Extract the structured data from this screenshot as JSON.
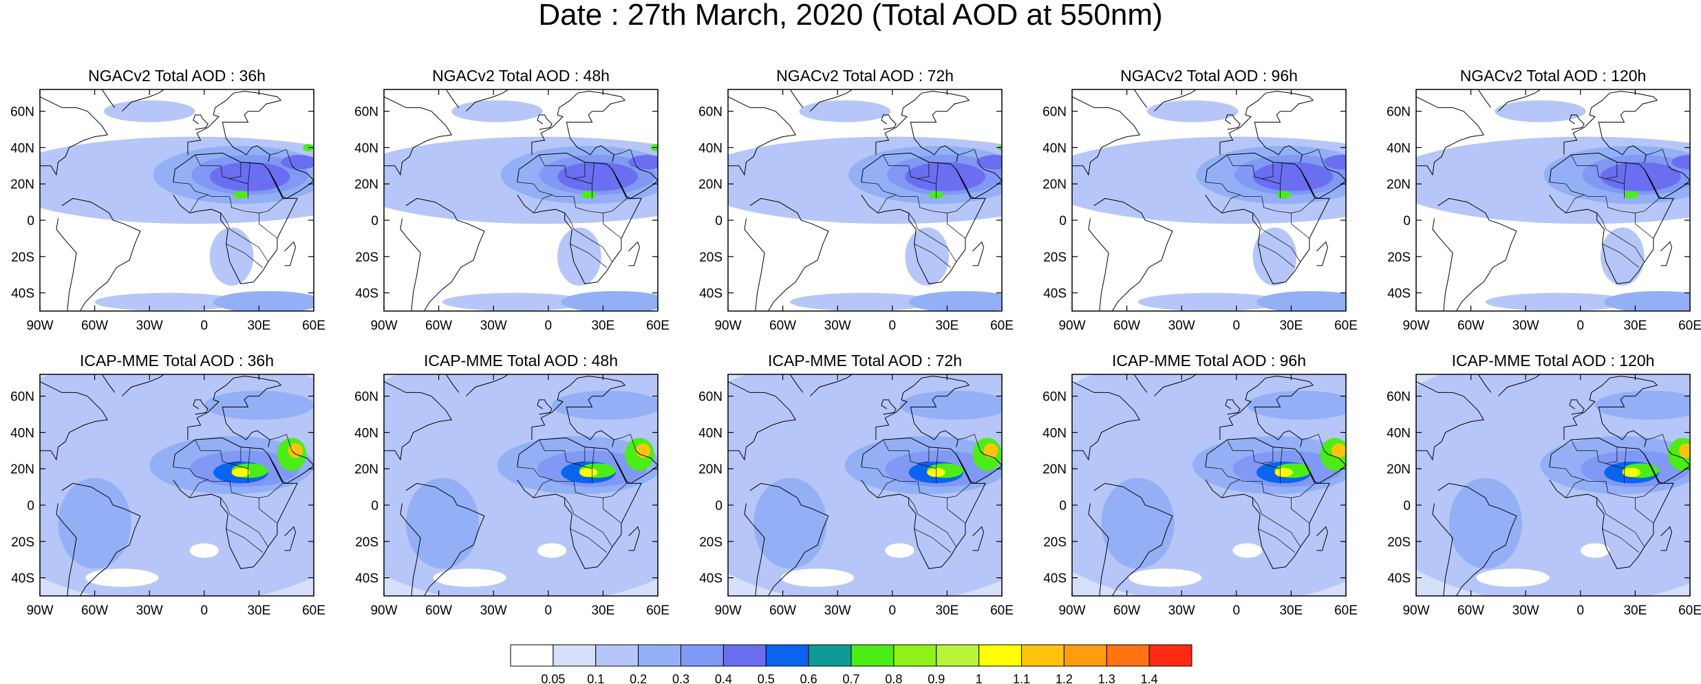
{
  "figure": {
    "title": "Date : 27th March, 2020 (Total AOD at 550nm)"
  },
  "rows": [
    {
      "model": "NGACv2",
      "panels": [
        {
          "title": "NGACv2 Total AOD : 36h"
        },
        {
          "title": "NGACv2 Total AOD : 48h"
        },
        {
          "title": "NGACv2 Total AOD : 72h"
        },
        {
          "title": "NGACv2 Total AOD : 96h"
        },
        {
          "title": "NGACv2 Total AOD : 120h"
        }
      ]
    },
    {
      "model": "ICAP-MME",
      "panels": [
        {
          "title": "ICAP-MME Total AOD : 36h"
        },
        {
          "title": "ICAP-MME Total AOD : 48h"
        },
        {
          "title": "ICAP-MME Total AOD : 72h"
        },
        {
          "title": "ICAP-MME Total AOD : 96h"
        },
        {
          "title": "ICAP-MME Total AOD : 120h"
        }
      ]
    }
  ],
  "map": {
    "lon_range": [
      -90,
      60
    ],
    "lat_range": [
      -50,
      72
    ],
    "lon_ticks": [
      {
        "value": -90,
        "label": "90W"
      },
      {
        "value": -60,
        "label": "60W"
      },
      {
        "value": -30,
        "label": "30W"
      },
      {
        "value": 0,
        "label": "0"
      },
      {
        "value": 30,
        "label": "30E"
      },
      {
        "value": 60,
        "label": "60E"
      }
    ],
    "lat_ticks": [
      {
        "value": 60,
        "label": "60N"
      },
      {
        "value": 40,
        "label": "40N"
      },
      {
        "value": 20,
        "label": "20N"
      },
      {
        "value": 0,
        "label": "0"
      },
      {
        "value": -20,
        "label": "20S"
      },
      {
        "value": -40,
        "label": "40S"
      }
    ]
  },
  "colorbar": {
    "colors": [
      "#ffffff",
      "#d6e0fb",
      "#b6c6f8",
      "#93b0f6",
      "#8099f4",
      "#6a6ef0",
      "#0a64f0",
      "#109a96",
      "#4cec17",
      "#8ef218",
      "#b7f43a",
      "#ffff00",
      "#ffc30b",
      "#ff9c10",
      "#ff7312",
      "#ff2a12"
    ],
    "labels": [
      "0.05",
      "0.1",
      "0.2",
      "0.3",
      "0.4",
      "0.5",
      "0.6",
      "0.7",
      "0.8",
      "0.9",
      "1",
      "1.1",
      "1.2",
      "1.3",
      "1.4"
    ]
  }
}
